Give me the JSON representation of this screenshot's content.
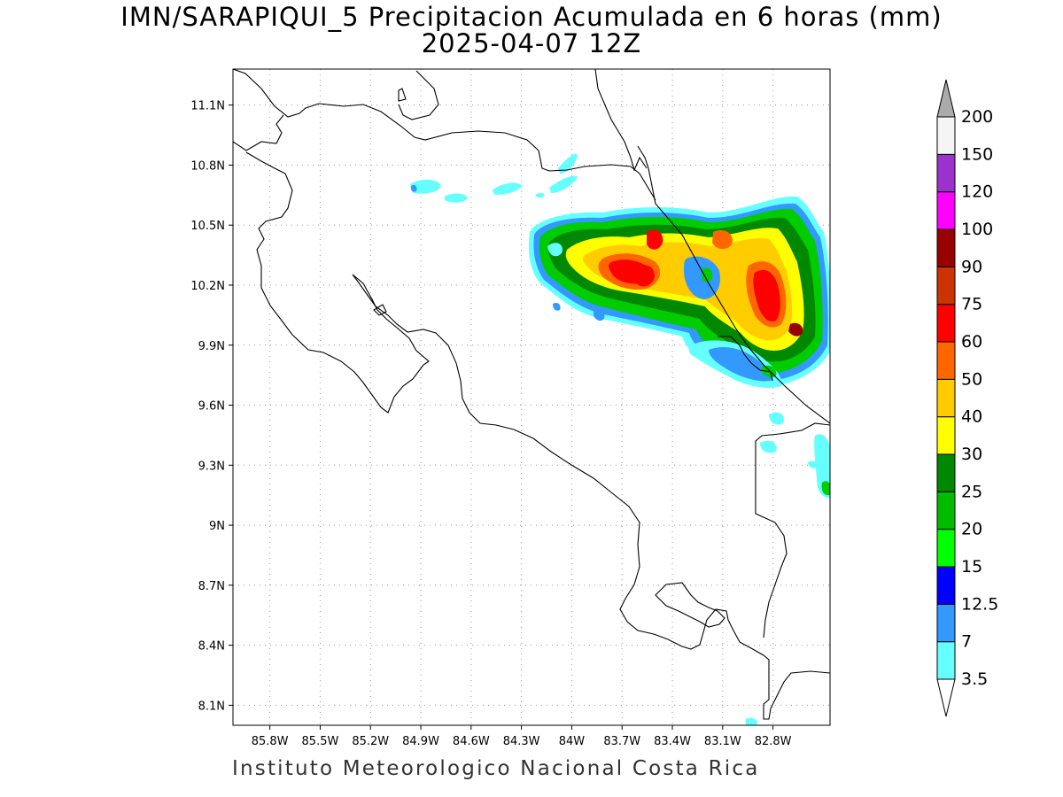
{
  "title": "IMN/SARAPIQUI_5 Precipitacion Acumulada en 6 horas (mm)",
  "subtitle": "2025-04-07 12Z",
  "footer": "Instituto Meteorologico Nacional Costa Rica",
  "map": {
    "lon_range": [
      -86.02,
      -82.46
    ],
    "lat_range": [
      8.0,
      11.28
    ],
    "lat_ticks": [
      {
        "value": 11.1,
        "label": "11.1N"
      },
      {
        "value": 10.8,
        "label": "10.8N"
      },
      {
        "value": 10.5,
        "label": "10.5N"
      },
      {
        "value": 10.2,
        "label": "10.2N"
      },
      {
        "value": 9.9,
        "label": "9.9N"
      },
      {
        "value": 9.6,
        "label": "9.6N"
      },
      {
        "value": 9.3,
        "label": "9.3N"
      },
      {
        "value": 9.0,
        "label": "9N"
      },
      {
        "value": 8.7,
        "label": "8.7N"
      },
      {
        "value": 8.4,
        "label": "8.4N"
      },
      {
        "value": 8.1,
        "label": "8.1N"
      }
    ],
    "lon_ticks": [
      {
        "value": -85.8,
        "label": "85.8W"
      },
      {
        "value": -85.5,
        "label": "85.5W"
      },
      {
        "value": -85.2,
        "label": "85.2W"
      },
      {
        "value": -84.9,
        "label": "84.9W"
      },
      {
        "value": -84.6,
        "label": "84.6W"
      },
      {
        "value": -84.3,
        "label": "84.3W"
      },
      {
        "value": -84.0,
        "label": "84W"
      },
      {
        "value": -83.7,
        "label": "83.7W"
      },
      {
        "value": -83.4,
        "label": "83.4W"
      },
      {
        "value": -83.1,
        "label": "83.1W"
      },
      {
        "value": -82.8,
        "label": "82.8W"
      }
    ],
    "grid": true
  },
  "colorbar": {
    "units": "mm",
    "levels": [
      "3.5",
      "7",
      "12.5",
      "15",
      "20",
      "25",
      "30",
      "40",
      "50",
      "60",
      "75",
      "90",
      "100",
      "120",
      "150",
      "200"
    ],
    "colors": [
      "#ffffff",
      "#66ffff",
      "#3399ff",
      "#0000ff",
      "#00ff00",
      "#00bb00",
      "#008800",
      "#ffff00",
      "#ffcc00",
      "#ff6600",
      "#ff0000",
      "#cc3300",
      "#990000",
      "#ff00ff",
      "#9933cc",
      "#f5f5f5",
      "#aaaaaa"
    ]
  }
}
